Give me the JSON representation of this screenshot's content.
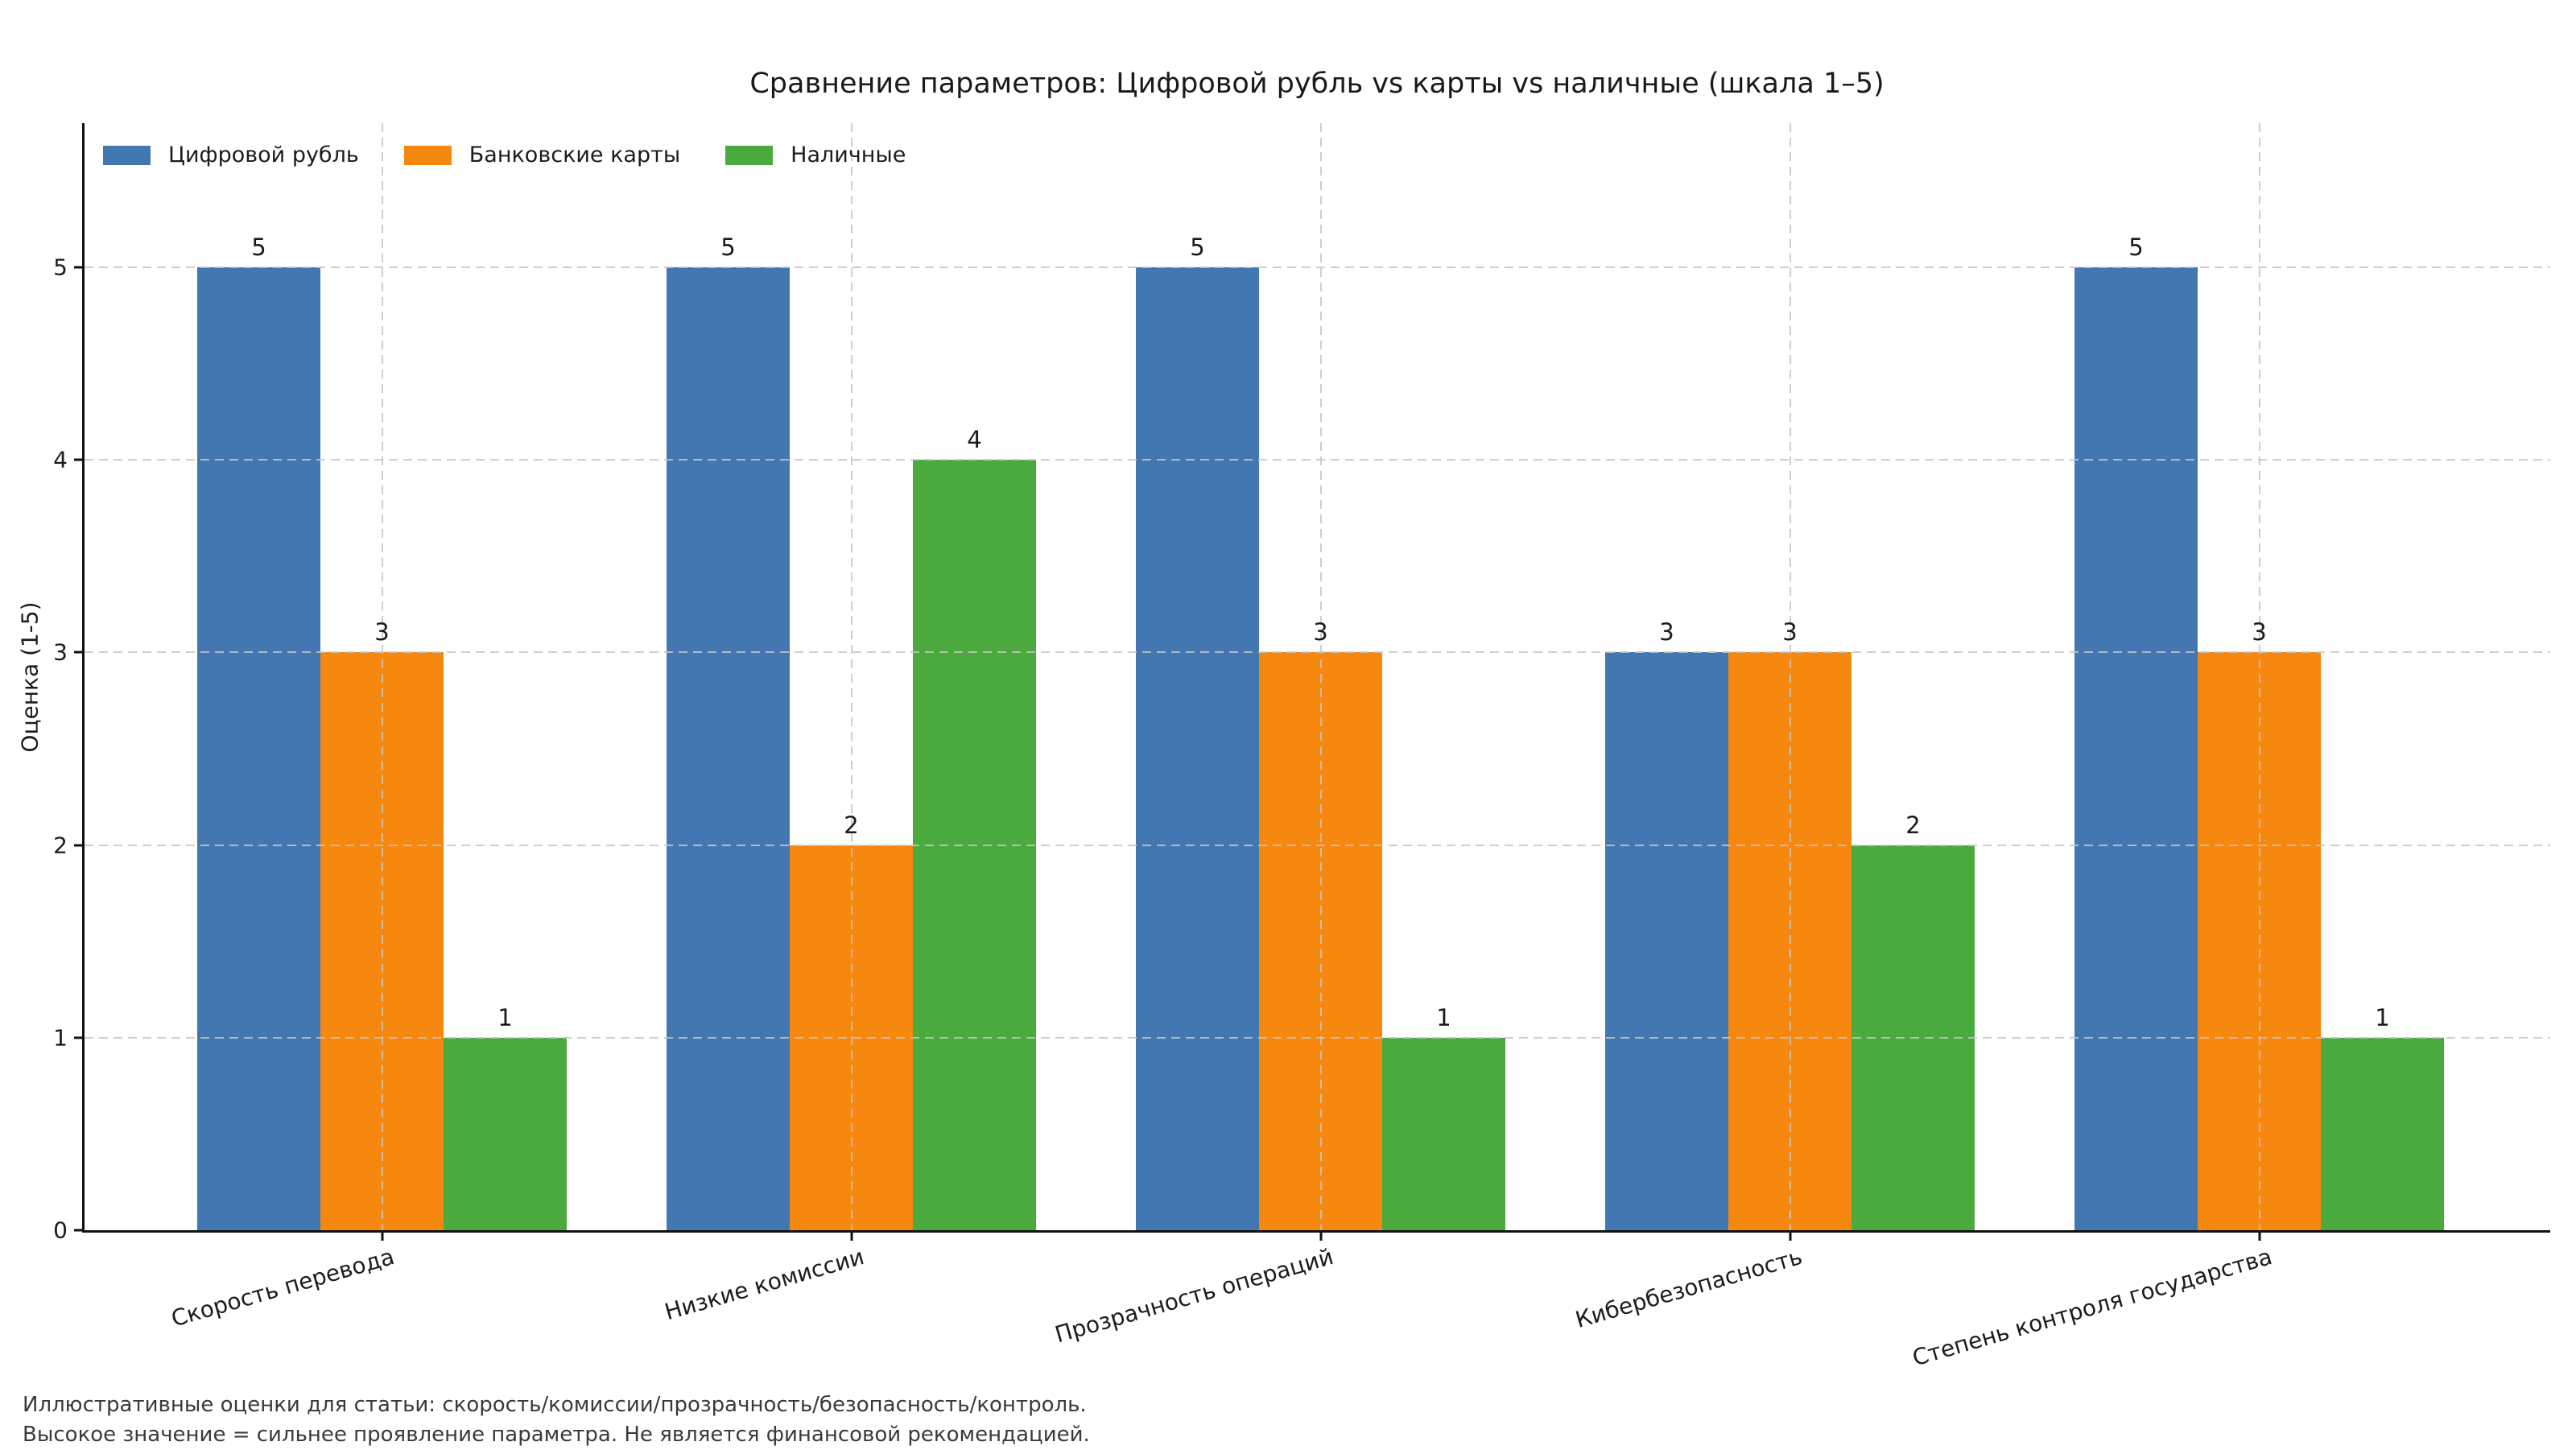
{
  "title": "Сравнение параметров: Цифровой рубль vs карты vs наличные (шкала 1–5)",
  "footnote": {
    "line1": "Иллюстративные оценки для статьи: скорость/комиссии/прозрачность/безопасность/контроль.",
    "line2": "Высокое значение = сильнее проявление параметра. Не является финансовой рекомендацией."
  },
  "chart_data": {
    "type": "bar",
    "title": "Сравнение параметров: Цифровой рубль vs карты vs наличные (шкала 1–5)",
    "xlabel": "",
    "ylabel": "Оценка (1-5)",
    "categories": [
      "Скорость перевода",
      "Низкие комиссии",
      "Прозрачность операций",
      "Кибербезопасность",
      "Степень контроля государства"
    ],
    "series": [
      {
        "name": "Цифровой рубль",
        "color": "#4377b2",
        "values": [
          5,
          5,
          5,
          3,
          5
        ]
      },
      {
        "name": "Банковские карты",
        "color": "#f6870f",
        "values": [
          3,
          2,
          3,
          3,
          3
        ]
      },
      {
        "name": "Наличные",
        "color": "#4aaa3d",
        "values": [
          1,
          4,
          1,
          2,
          1
        ]
      }
    ],
    "yticks": [
      0,
      1,
      2,
      3,
      4,
      5
    ],
    "ylim": [
      0,
      5.75
    ],
    "grid": "dashed light-gray, horizontal and vertical, drawn above bars",
    "legend_position": "top-left inside plot, horizontal, no frame",
    "bar_value_labels": true
  }
}
